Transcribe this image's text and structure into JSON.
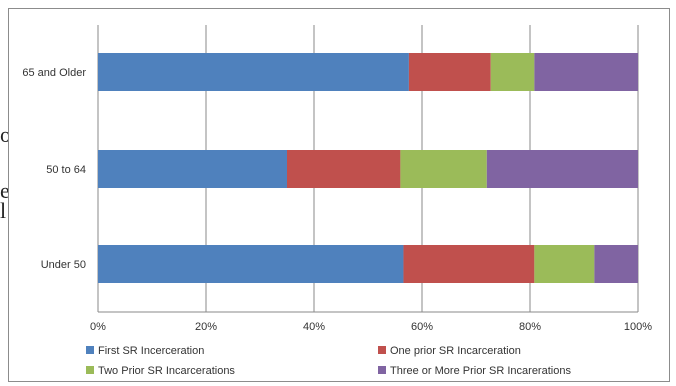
{
  "chart_data": {
    "type": "bar",
    "orientation": "horizontal",
    "stacked": "percent",
    "categories": [
      "65 and Older",
      "50 to 64",
      "Under 50"
    ],
    "series": [
      {
        "name": "First SR Incerceration",
        "color": "#4f81bd",
        "values": [
          57,
          35,
          56
        ]
      },
      {
        "name": "One prior SR Incarceration",
        "color": "#c0504d",
        "values": [
          15,
          21,
          24
        ]
      },
      {
        "name": "Two Prior SR Incarcerations",
        "color": "#9bbb59",
        "values": [
          8,
          16,
          11
        ]
      },
      {
        "name": "Three or More Prior SR Incarerations",
        "color": "#8064a2",
        "values": [
          19,
          28,
          8
        ]
      }
    ],
    "xlim": [
      0,
      100
    ],
    "xticks": [
      "0%",
      "20%",
      "40%",
      "60%",
      "80%",
      "100%"
    ],
    "grid": true,
    "legend_position": "bottom"
  }
}
